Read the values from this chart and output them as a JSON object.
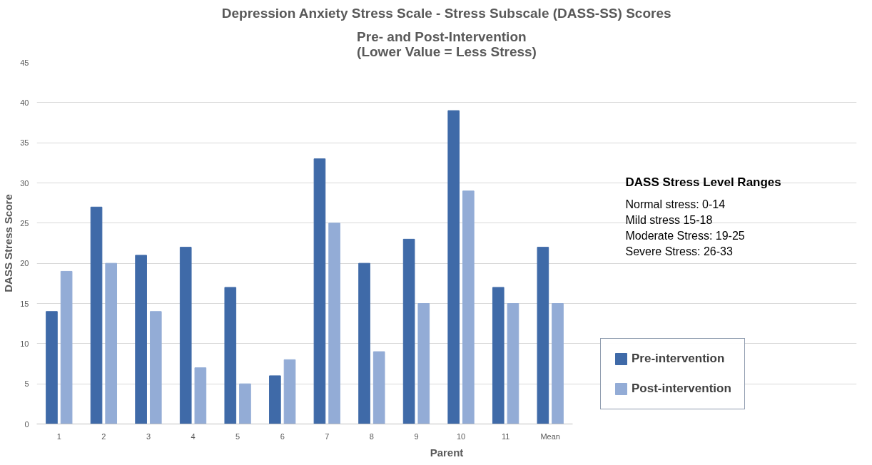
{
  "chart_data": {
    "type": "bar",
    "title": "Depression Anxiety Stress Scale - Stress Subscale (DASS-SS) Scores",
    "subtitle": "Pre- and Post-Intervention\n(Lower Value = Less Stress)",
    "xlabel": "Parent",
    "ylabel": "DASS Stress Score",
    "categories": [
      "1",
      "2",
      "3",
      "4",
      "5",
      "6",
      "7",
      "8",
      "9",
      "10",
      "11",
      "Mean"
    ],
    "series": [
      {
        "name": "Pre-intervention",
        "color": "#3f6aa8",
        "values": [
          14,
          27,
          21,
          22,
          17,
          6,
          33,
          20,
          23,
          39,
          17,
          22
        ]
      },
      {
        "name": "Post-intervention",
        "color": "#93acd6",
        "values": [
          19,
          20,
          14,
          7,
          5,
          8,
          25,
          9,
          15,
          29,
          15,
          15
        ]
      }
    ],
    "ylim": [
      0,
      45
    ],
    "yticks": [
      0,
      5,
      10,
      15,
      20,
      25,
      30,
      35,
      40,
      45
    ],
    "grid": "y",
    "legend": "right",
    "annotations": [
      "DASS Stress Level Ranges",
      "Normal stress: 0-14",
      "Mild stress 15-18",
      "Moderate Stress: 19-25",
      "Severe Stress: 26-33"
    ]
  }
}
